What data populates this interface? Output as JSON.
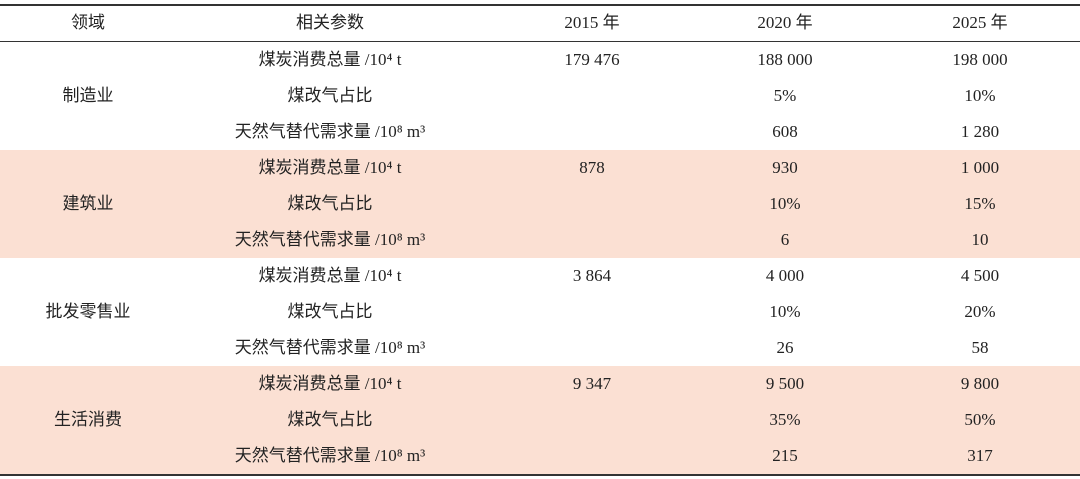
{
  "table": {
    "header": [
      "领域",
      "相关参数",
      "2015 年",
      "2020 年",
      "2025 年"
    ],
    "groups": [
      {
        "name": "制造业",
        "rows": [
          {
            "param": "煤炭消费总量 /10⁴ t",
            "values": [
              "179 476",
              "188 000",
              "198 000"
            ]
          },
          {
            "param": "煤改气占比",
            "values": [
              null,
              "5%",
              "10%"
            ]
          },
          {
            "param": "天然气替代需求量 /10⁸ m³",
            "values": [
              null,
              "608",
              "1 280"
            ]
          }
        ]
      },
      {
        "name": "建筑业",
        "rows": [
          {
            "param": "煤炭消费总量 /10⁴ t",
            "values": [
              "878",
              "930",
              "1 000"
            ]
          },
          {
            "param": "煤改气占比",
            "values": [
              null,
              "10%",
              "15%"
            ]
          },
          {
            "param": "天然气替代需求量 /10⁸ m³",
            "values": [
              null,
              "6",
              "10"
            ]
          }
        ]
      },
      {
        "name": "批发零售业",
        "rows": [
          {
            "param": "煤炭消费总量 /10⁴ t",
            "values": [
              "3 864",
              "4 000",
              "4 500"
            ]
          },
          {
            "param": "煤改气占比",
            "values": [
              null,
              "10%",
              "20%"
            ]
          },
          {
            "param": "天然气替代需求量 /10⁸ m³",
            "values": [
              null,
              "26",
              "58"
            ]
          }
        ]
      },
      {
        "name": "生活消费",
        "rows": [
          {
            "param": "煤炭消费总量 /10⁴ t",
            "values": [
              "9 347",
              "9 500",
              "9 800"
            ]
          },
          {
            "param": "煤改气占比",
            "values": [
              null,
              "35%",
              "50%"
            ]
          },
          {
            "param": "天然气替代需求量 /10⁸ m³",
            "values": [
              null,
              "215",
              "317"
            ]
          }
        ]
      }
    ]
  }
}
